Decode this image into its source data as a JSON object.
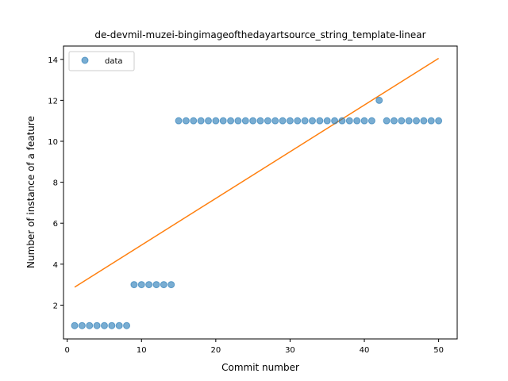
{
  "chart_data": {
    "type": "scatter",
    "title": "de-devmil-muzei-bingimageofthedayartsource_string_template-linear",
    "xlabel": "Commit number",
    "ylabel": "Number of instance of a feature",
    "xlim": [
      -0.5,
      52.5
    ],
    "ylim": [
      0.35,
      14.65
    ],
    "xticks": [
      0,
      10,
      20,
      30,
      40,
      50
    ],
    "yticks": [
      2,
      4,
      6,
      8,
      10,
      12,
      14
    ],
    "grid": false,
    "legend": {
      "position": "upper-left",
      "entries": [
        "data"
      ]
    },
    "series": [
      {
        "name": "data",
        "kind": "scatter",
        "color": "#1f77b4",
        "x": [
          1,
          2,
          3,
          4,
          5,
          6,
          7,
          8,
          9,
          10,
          11,
          12,
          13,
          14,
          15,
          16,
          17,
          18,
          19,
          20,
          21,
          22,
          23,
          24,
          25,
          26,
          27,
          28,
          29,
          30,
          31,
          32,
          33,
          34,
          35,
          36,
          37,
          38,
          39,
          40,
          41,
          42,
          43,
          44,
          45,
          46,
          47,
          48,
          49,
          50
        ],
        "y": [
          1,
          1,
          1,
          1,
          1,
          1,
          1,
          1,
          3,
          3,
          3,
          3,
          3,
          3,
          11,
          11,
          11,
          11,
          11,
          11,
          11,
          11,
          11,
          11,
          11,
          11,
          11,
          11,
          11,
          11,
          11,
          11,
          11,
          11,
          11,
          11,
          11,
          11,
          11,
          11,
          11,
          12,
          11,
          11,
          11,
          11,
          11,
          11,
          11,
          11
        ]
      },
      {
        "kind": "line",
        "color": "#ff7f0e",
        "x": [
          1,
          50
        ],
        "y": [
          2.88,
          14.05
        ]
      }
    ]
  }
}
